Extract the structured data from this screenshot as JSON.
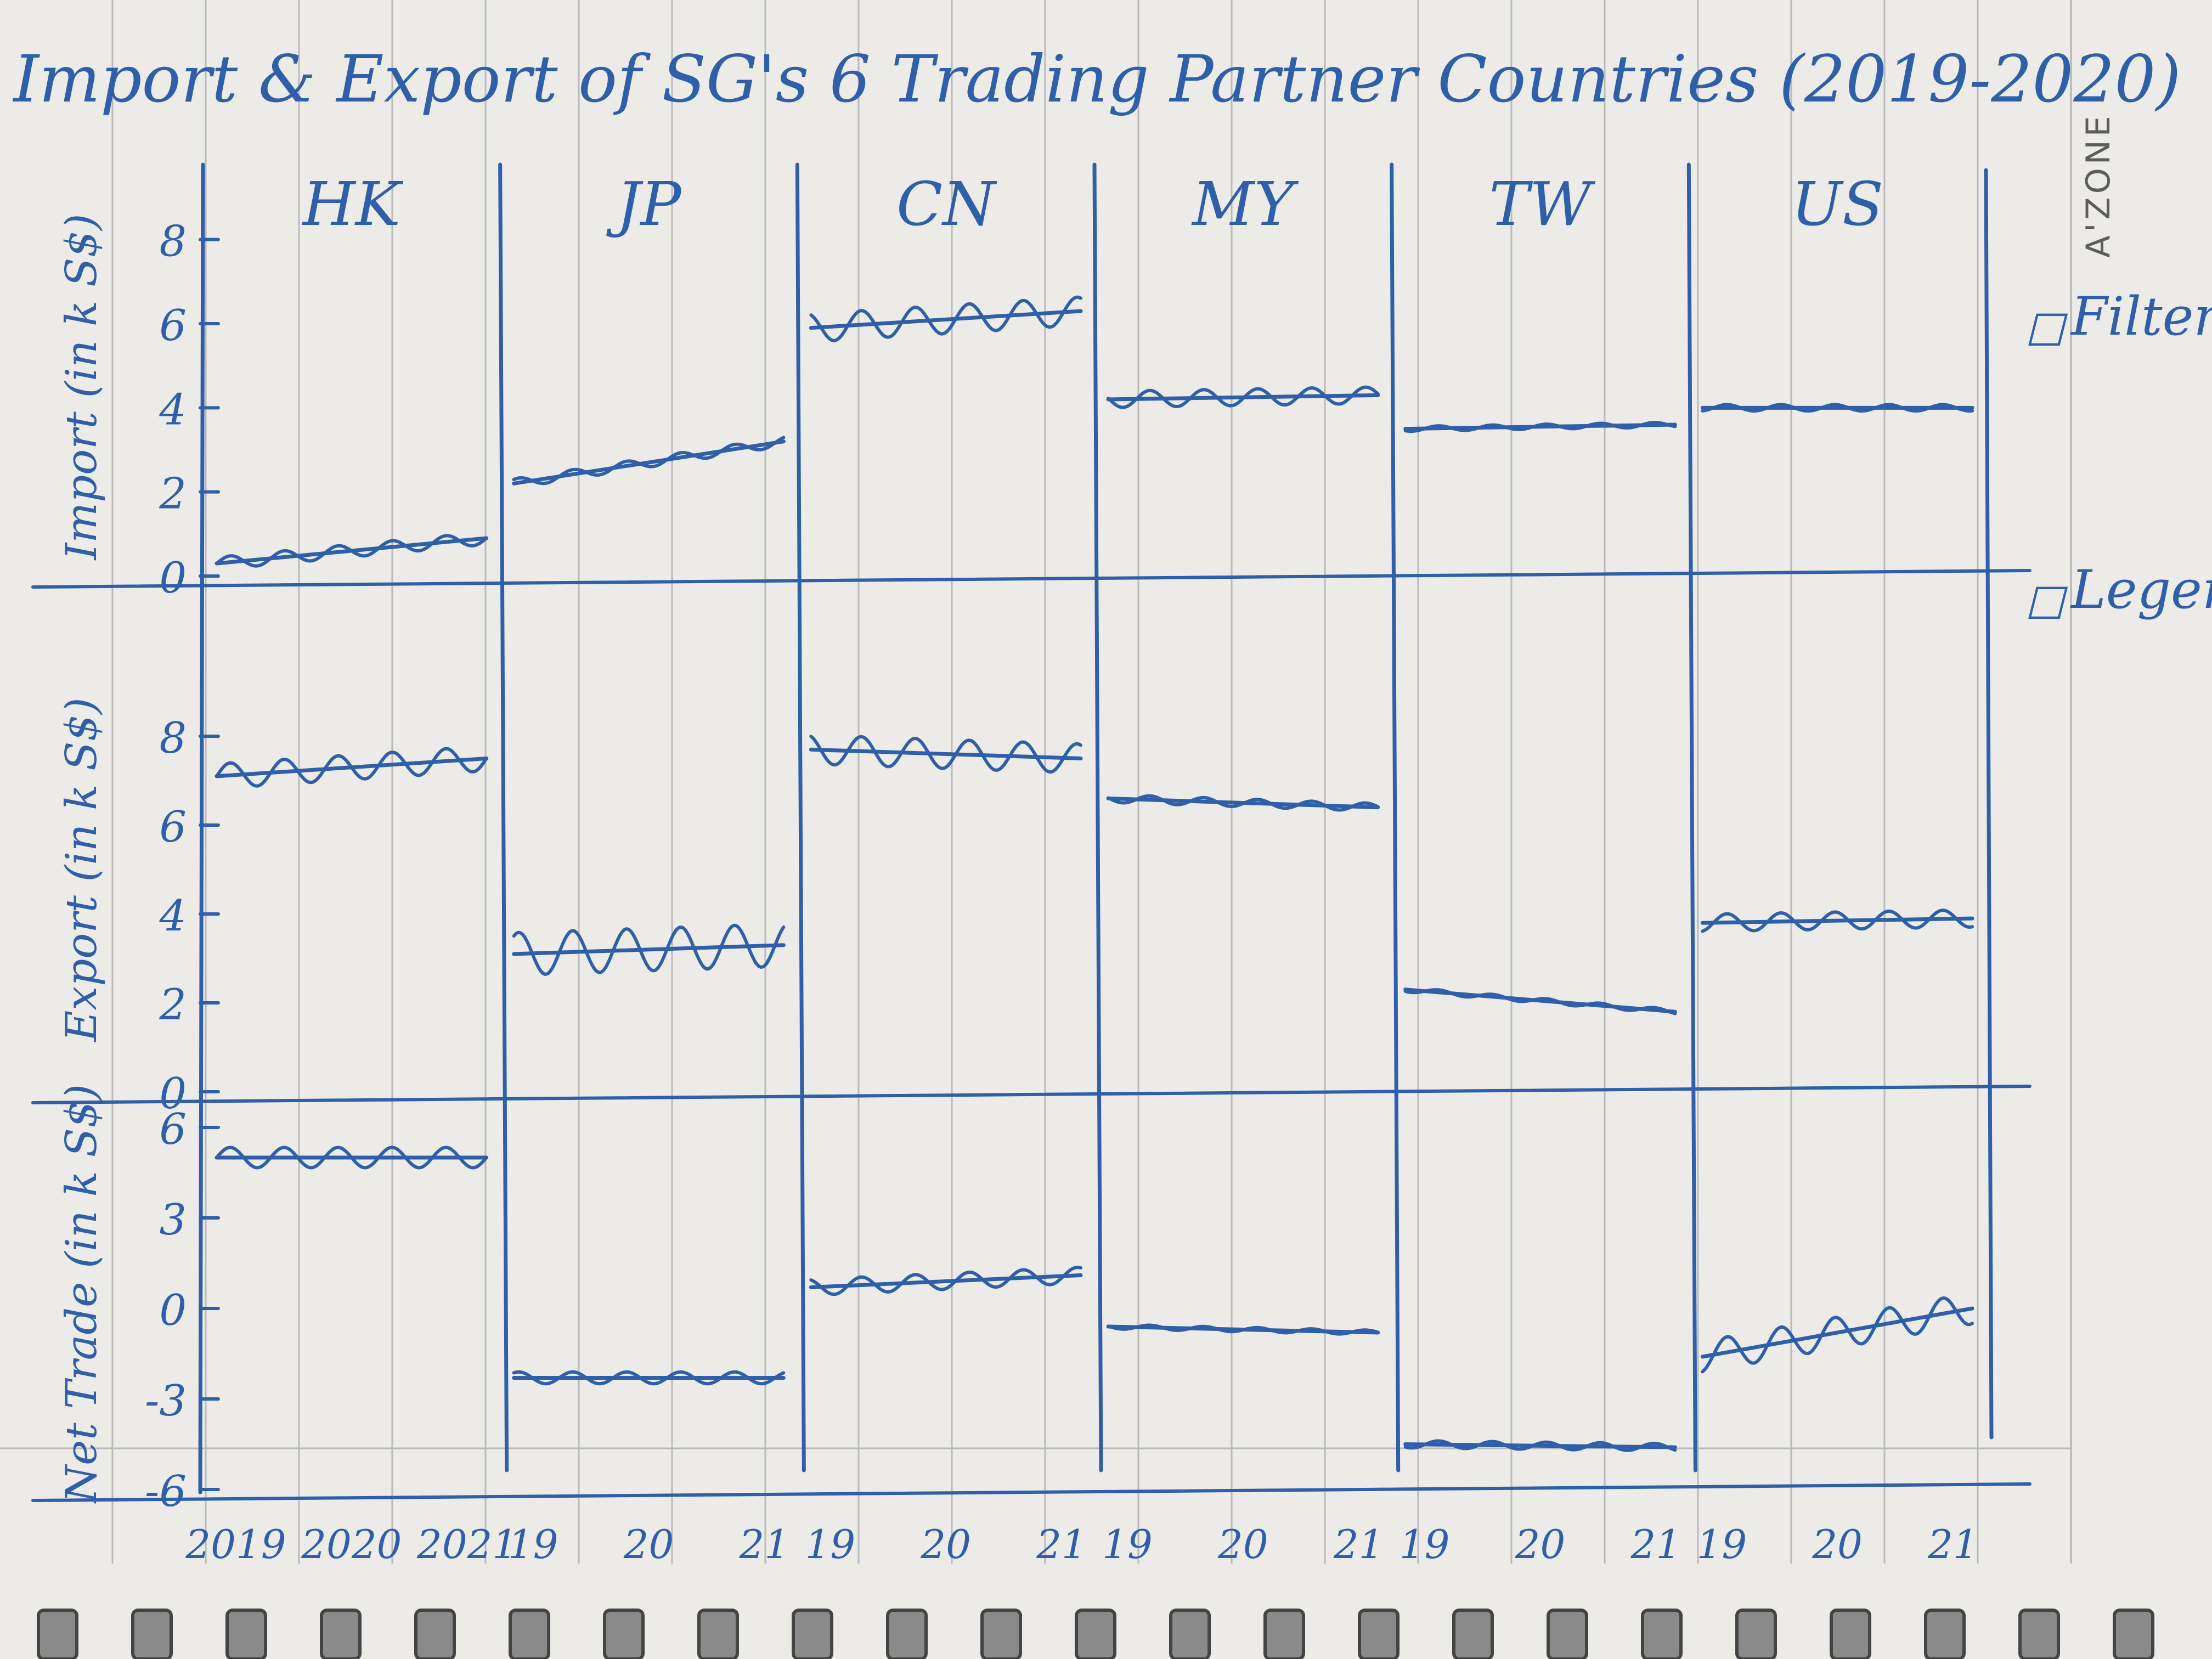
{
  "title": "Import & Export of SG's 6 Trading Partner Countries (2019-2020)",
  "brand": "A'ZONE",
  "side_options": {
    "filter": {
      "box": "☐",
      "label": "Filter"
    },
    "legend": {
      "box": "☐",
      "label": "Legend"
    }
  },
  "chart_data": {
    "type": "line",
    "title": "Import & Export of SG's 6 Trading Partner Countries (2019-2020)",
    "countries": [
      "HK",
      "JP",
      "CN",
      "MY",
      "TW",
      "US"
    ],
    "x_tick_labels": [
      [
        "2019",
        "2020",
        "2021"
      ],
      [
        "19",
        "20",
        "21"
      ],
      [
        "19",
        "20",
        "21"
      ],
      [
        "19",
        "20",
        "21"
      ],
      [
        "19",
        "20",
        "21"
      ],
      [
        "19",
        "20",
        "21"
      ]
    ],
    "rows": [
      {
        "key": "import",
        "ylabel": "Import (in k S$)",
        "ylim": [
          0,
          9
        ],
        "tick_values": [
          0,
          2,
          4,
          6,
          8
        ],
        "tick_labels": [
          "0",
          "2",
          "4",
          "6",
          "8"
        ],
        "series": [
          {
            "country": "HK",
            "trend": [
              0.3,
              0.9
            ],
            "wave_amp": 0.25
          },
          {
            "country": "JP",
            "trend": [
              2.2,
              3.2
            ],
            "wave_amp": 0.12
          },
          {
            "country": "CN",
            "trend": [
              5.9,
              6.3
            ],
            "wave_amp": 0.35
          },
          {
            "country": "MY",
            "trend": [
              4.2,
              4.3
            ],
            "wave_amp": 0.3
          },
          {
            "country": "TW",
            "trend": [
              3.5,
              3.6
            ],
            "wave_amp": 0.2
          },
          {
            "country": "US",
            "trend": [
              4.0,
              4.0
            ],
            "wave_amp": 0.35
          }
        ]
      },
      {
        "key": "export",
        "ylabel": "Export (in k S$)",
        "ylim": [
          0,
          10
        ],
        "tick_values": [
          0,
          2,
          4,
          6,
          8
        ],
        "tick_labels": [
          "0",
          "2",
          "4",
          "6",
          "8"
        ],
        "series": [
          {
            "country": "HK",
            "trend": [
              7.1,
              7.5
            ],
            "wave_amp": 0.3
          },
          {
            "country": "JP",
            "trend": [
              3.1,
              3.3
            ],
            "wave_amp": 0.5
          },
          {
            "country": "CN",
            "trend": [
              7.7,
              7.5
            ],
            "wave_amp": 0.5
          },
          {
            "country": "MY",
            "trend": [
              6.6,
              6.4
            ],
            "wave_amp": 0.3
          },
          {
            "country": "TW",
            "trend": [
              2.3,
              1.8
            ],
            "wave_amp": 0.25
          },
          {
            "country": "US",
            "trend": [
              3.8,
              3.9
            ],
            "wave_amp": 0.4
          }
        ]
      },
      {
        "key": "net",
        "ylabel": "Net Trade (in k S$)",
        "ylim": [
          -6,
          7
        ],
        "tick_values": [
          -6,
          -3,
          0,
          3,
          6
        ],
        "tick_labels": [
          "-6",
          "-3",
          "0",
          "3",
          "6"
        ],
        "series": [
          {
            "country": "HK",
            "trend": [
              5.0,
              5.0
            ],
            "wave_amp": 0.35
          },
          {
            "country": "JP",
            "trend": [
              -2.3,
              -2.3
            ],
            "wave_amp": 0.3
          },
          {
            "country": "CN",
            "trend": [
              0.7,
              1.1
            ],
            "wave_amp": 0.9
          },
          {
            "country": "MY",
            "trend": [
              -0.6,
              -0.8
            ],
            "wave_amp": 0.35
          },
          {
            "country": "TW",
            "trend": [
              -4.5,
              -4.6
            ],
            "wave_amp": 0.25
          },
          {
            "country": "US",
            "trend": [
              -1.6,
              0.0
            ],
            "wave_amp": 0.6
          }
        ]
      }
    ]
  }
}
